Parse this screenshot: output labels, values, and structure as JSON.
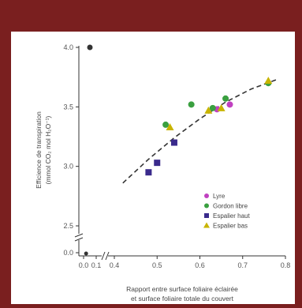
{
  "chart_data": {
    "type": "scatter",
    "title": "",
    "xlabel_line1": "Rapport entre surface foliaire éclairée",
    "xlabel_line2": "et surface foliaire totale du couvert",
    "ylabel_line1": "Efficience de transpiration",
    "ylabel_line2": "(mmol CO₂ mol H₂O⁻¹)",
    "xlim": [
      0.0,
      0.8
    ],
    "ylim_main": [
      2.5,
      4.0
    ],
    "axis_break_x": true,
    "axis_break_y": true,
    "x_ticks": [
      "0.0",
      "0.1",
      "0.4",
      "0.5",
      "0.6",
      "0.7",
      "0.8"
    ],
    "y_ticks": [
      "0.0",
      "2.5",
      "3.0",
      "3.5",
      "4.0"
    ],
    "legend_position": "bottom-right",
    "grid": false,
    "series": [
      {
        "name": "Lyre",
        "color": "#c040c0",
        "marker": "circle",
        "points": [
          [
            0.64,
            3.48
          ],
          [
            0.67,
            3.52
          ]
        ]
      },
      {
        "name": "Gordon libre",
        "color": "#3aa040",
        "marker": "circle",
        "points": [
          [
            0.52,
            3.35
          ],
          [
            0.58,
            3.52
          ],
          [
            0.63,
            3.49
          ],
          [
            0.66,
            3.57
          ],
          [
            0.76,
            3.7
          ]
        ]
      },
      {
        "name": "Espalier haut",
        "color": "#3a2a8c",
        "marker": "square",
        "points": [
          [
            0.48,
            2.95
          ],
          [
            0.5,
            3.03
          ],
          [
            0.54,
            3.2
          ]
        ]
      },
      {
        "name": "Espalier bas",
        "color": "#c8b400",
        "marker": "triangle",
        "points": [
          [
            0.53,
            3.33
          ],
          [
            0.62,
            3.47
          ],
          [
            0.65,
            3.49
          ],
          [
            0.76,
            3.72
          ]
        ]
      }
    ],
    "fit_curve": {
      "style": "dashed",
      "points": [
        [
          0.42,
          2.86
        ],
        [
          0.48,
          3.06
        ],
        [
          0.54,
          3.24
        ],
        [
          0.6,
          3.4
        ],
        [
          0.66,
          3.54
        ],
        [
          0.72,
          3.65
        ],
        [
          0.78,
          3.73
        ]
      ]
    },
    "corner_point": {
      "x": 0.05,
      "y": 4.0
    }
  }
}
